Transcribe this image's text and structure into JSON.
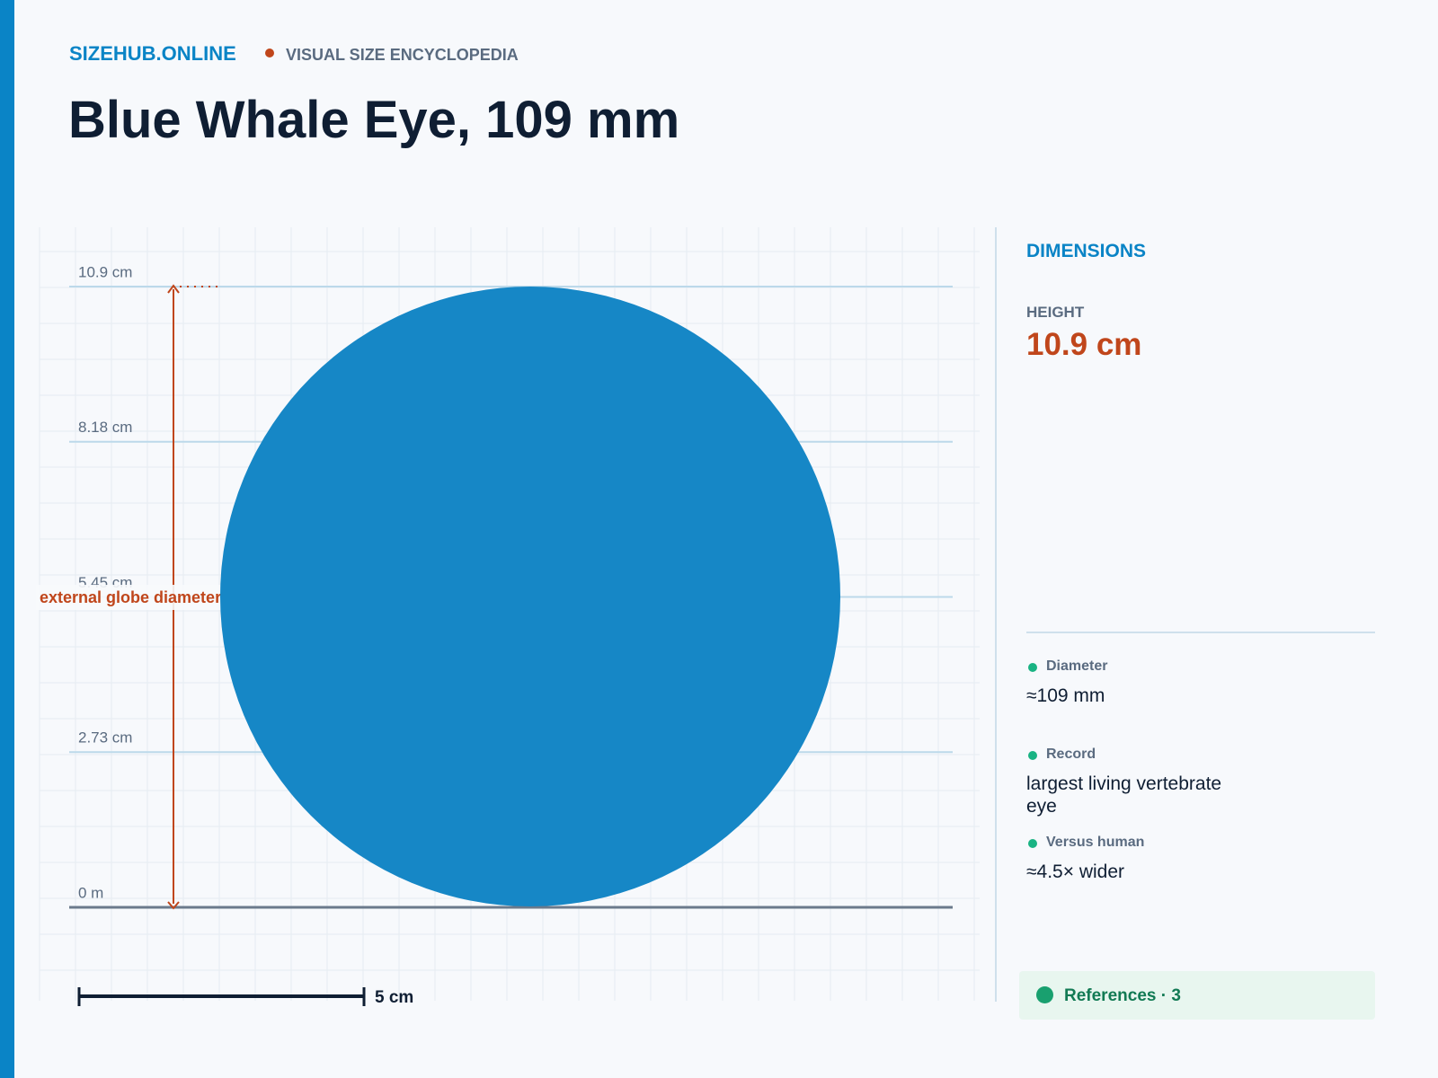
{
  "header": {
    "brand": "SIZEHUB.ONLINE",
    "tagline": "VISUAL SIZE ENCYCLOPEDIA",
    "title": "Blue Whale Eye, 109 mm"
  },
  "figure": {
    "axis_labels": [
      "10.9 cm",
      "8.18 cm",
      "5.45 cm",
      "2.73 cm",
      "0 m"
    ],
    "annotation": "external globe diameter",
    "scale_bar": "5 cm"
  },
  "panel": {
    "heading": "DIMENSIONS",
    "metric": {
      "label": "HEIGHT",
      "value": "10.9 cm"
    },
    "facts": [
      {
        "label": "Diameter",
        "value": "≈109 mm"
      },
      {
        "label": "Record",
        "value": "largest living vertebrate eye"
      },
      {
        "label": "Versus human",
        "value": "≈4.5× wider"
      }
    ],
    "references": "References · 3"
  }
}
